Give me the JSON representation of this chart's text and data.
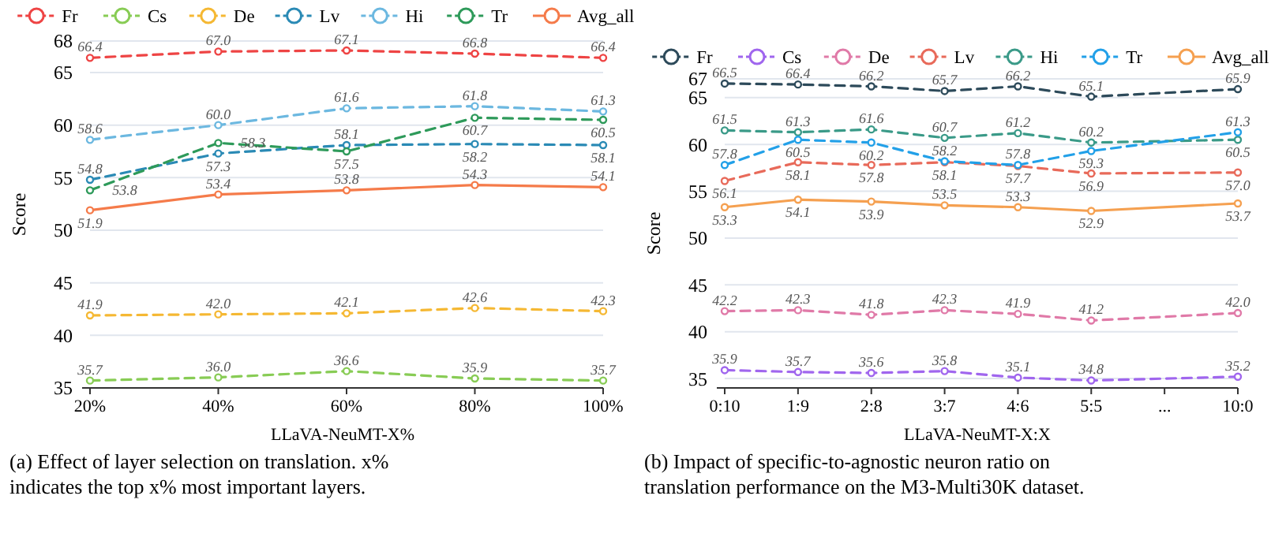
{
  "chart_data": [
    {
      "type": "line",
      "xlabel": "LLaVA-NeuMT-X%",
      "ylabel": "Score",
      "categories": [
        "20%",
        "40%",
        "60%",
        "80%",
        "100%"
      ],
      "ylim": [
        35,
        68
      ],
      "yticks": [
        35,
        40,
        45,
        50,
        55,
        60,
        65,
        68
      ],
      "grid": "y",
      "legend": "top",
      "marker": "circle",
      "series": [
        {
          "name": "Fr",
          "color": "#ee4444",
          "line_style": "dashed",
          "values": [
            66.4,
            67.0,
            67.1,
            66.8,
            66.4
          ],
          "value_labels": [
            "66.4",
            "67.0",
            "67.1",
            "66.8",
            "66.4"
          ]
        },
        {
          "name": "Cs",
          "color": "#88cc55",
          "line_style": "dashed",
          "values": [
            35.7,
            36.0,
            36.6,
            35.9,
            35.7
          ],
          "value_labels": [
            "35.7",
            "36.0",
            "36.6",
            "35.9",
            "35.7"
          ]
        },
        {
          "name": "De",
          "color": "#f5b833",
          "line_style": "dashed",
          "values": [
            41.9,
            42.0,
            42.1,
            42.6,
            42.3
          ],
          "value_labels": [
            "41.9",
            "42.0",
            "42.1",
            "42.6",
            "42.3"
          ]
        },
        {
          "name": "Lv",
          "color": "#2a8ab5",
          "line_style": "dashed",
          "values": [
            54.8,
            57.3,
            58.1,
            58.2,
            58.1
          ],
          "value_labels": [
            "54.8",
            "57.3",
            "58.1",
            "58.2",
            "58.1"
          ]
        },
        {
          "name": "Hi",
          "color": "#6cb8e0",
          "line_style": "dashed",
          "values": [
            58.6,
            60.0,
            61.6,
            61.8,
            61.3
          ],
          "value_labels": [
            "58.6",
            "60.0",
            "61.6",
            "61.8",
            "61.3"
          ]
        },
        {
          "name": "Tr",
          "color": "#2e9a5a",
          "line_style": "dashed",
          "values": [
            53.8,
            58.3,
            57.5,
            60.7,
            60.5
          ],
          "value_labels": [
            "53.8",
            "58.3",
            "57.5",
            "60.7",
            "60.5"
          ]
        },
        {
          "name": "Avg_all",
          "color": "#f57b4a",
          "line_style": "solid",
          "values": [
            51.9,
            53.4,
            53.8,
            54.3,
            54.1
          ],
          "value_labels": [
            "51.9",
            "53.4",
            "53.8",
            "54.3",
            "54.1"
          ]
        }
      ],
      "annotations": [
        "(a) Effect of layer selection on translation. x% indicates the top x% most important layers."
      ]
    },
    {
      "type": "line",
      "xlabel": "LLaVA-NeuMT-X:X",
      "ylabel": "Score",
      "categories": [
        "0:10",
        "1:9",
        "2:8",
        "3:7",
        "4:6",
        "5:5",
        "...",
        "10:0"
      ],
      "ylim": [
        34,
        67
      ],
      "yticks": [
        35,
        40,
        45,
        50,
        55,
        60,
        65,
        67
      ],
      "grid": "y",
      "legend": "top",
      "marker": "circle",
      "series": [
        {
          "name": "Fr",
          "color": "#2d4a5a",
          "line_style": "dashed",
          "values": [
            66.5,
            66.4,
            66.2,
            65.7,
            66.2,
            65.1,
            null,
            65.9
          ],
          "value_labels": [
            "66.5",
            "66.4",
            "66.2",
            "65.7",
            "66.2",
            "65.1",
            null,
            "65.9"
          ]
        },
        {
          "name": "Cs",
          "color": "#a066ee",
          "line_style": "dashed",
          "values": [
            35.9,
            35.7,
            35.6,
            35.8,
            35.1,
            34.8,
            null,
            35.2
          ],
          "value_labels": [
            "35.9",
            "35.7",
            "35.6",
            "35.8",
            "35.1",
            "34.8",
            null,
            "35.2"
          ]
        },
        {
          "name": "De",
          "color": "#e07aa8",
          "line_style": "dashed",
          "values": [
            42.2,
            42.3,
            41.8,
            42.3,
            41.9,
            41.2,
            null,
            42.0
          ],
          "value_labels": [
            "42.2",
            "42.3",
            "41.8",
            "42.3",
            "41.9",
            "41.2",
            null,
            "42.0"
          ]
        },
        {
          "name": "Lv",
          "color": "#e86a5a",
          "line_style": "dashed",
          "values": [
            56.1,
            58.1,
            57.8,
            58.1,
            57.7,
            56.9,
            null,
            57.0
          ],
          "value_labels": [
            "56.1",
            "58.1",
            "57.8",
            "58.1",
            "57.7",
            "56.9",
            null,
            "57.0"
          ]
        },
        {
          "name": "Hi",
          "color": "#3a9a88",
          "line_style": "dashed",
          "values": [
            61.5,
            61.3,
            61.6,
            60.7,
            61.2,
            60.2,
            null,
            60.5
          ],
          "value_labels": [
            "61.5",
            "61.3",
            "61.6",
            "60.7",
            "61.2",
            "60.2",
            null,
            "60.5"
          ]
        },
        {
          "name": "Tr",
          "color": "#22a0e8",
          "line_style": "dashed",
          "values": [
            57.8,
            60.5,
            60.2,
            58.2,
            57.8,
            59.3,
            null,
            61.3
          ],
          "value_labels": [
            "57.8",
            "60.5",
            "60.2",
            "58.2",
            "57.8",
            "59.3",
            null,
            "61.3"
          ]
        },
        {
          "name": "Avg_all",
          "color": "#f5a050",
          "line_style": "solid",
          "values": [
            53.3,
            54.1,
            53.9,
            53.5,
            53.3,
            52.9,
            null,
            53.7
          ],
          "value_labels": [
            "53.3",
            "54.1",
            "53.9",
            "53.5",
            "53.3",
            "52.9",
            null,
            "53.7"
          ]
        }
      ],
      "annotations": [
        "(b) Impact of specific-to-agnostic neuron ratio on translation performance on the M3-Multi30K dataset."
      ]
    }
  ]
}
